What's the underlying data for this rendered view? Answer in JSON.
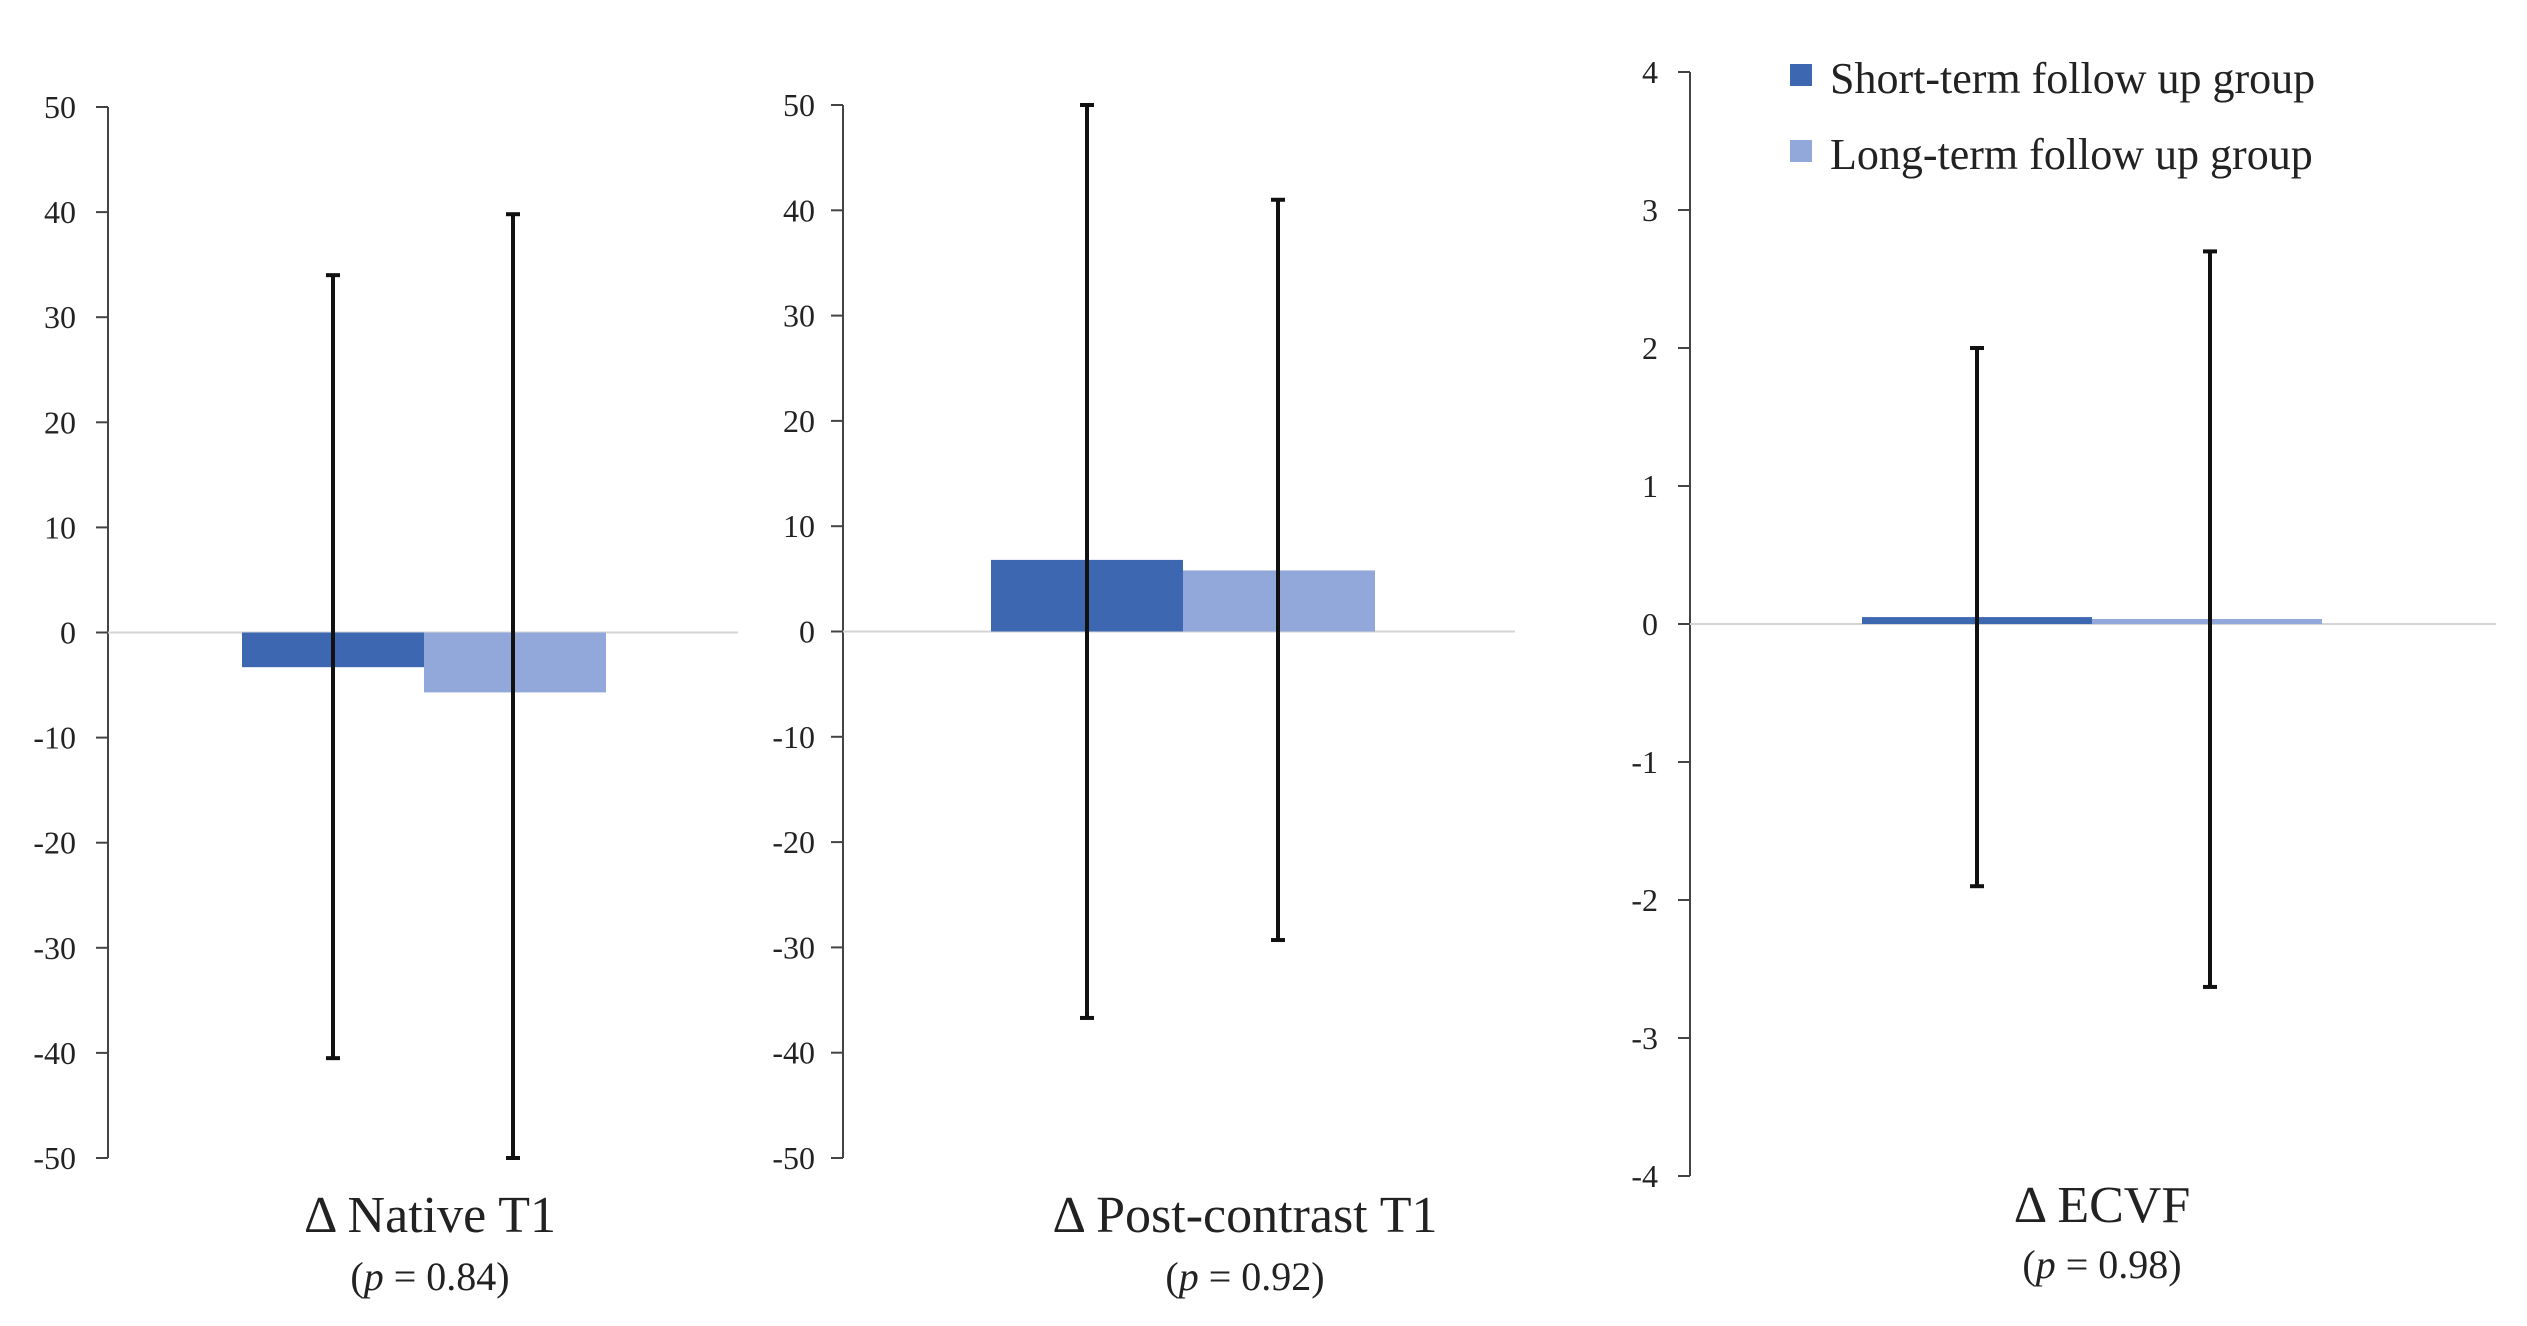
{
  "legend": {
    "placement": "top-right",
    "items": [
      {
        "label": "Short-term follow up group",
        "color": "#3D67B1"
      },
      {
        "label": "Long-term follow up group",
        "color": "#93A8DA"
      }
    ]
  },
  "chart_data": [
    {
      "type": "bar",
      "title": "Δ Native T1",
      "subtitle_prefix": "(",
      "subtitle_italic": "p",
      "subtitle_rest": " = 0.84)",
      "ylim": [
        -50,
        50
      ],
      "yticks": [
        50,
        40,
        30,
        20,
        10,
        0,
        -10,
        -20,
        -30,
        -40,
        -50
      ],
      "grid": false,
      "series": [
        {
          "name": "Short-term follow up group",
          "color": "#3D67B1",
          "value": -3.3,
          "err_high": 34,
          "err_low": -40.5
        },
        {
          "name": "Long-term follow up group",
          "color": "#93A8DA",
          "value": -5.7,
          "err_high": 39.8,
          "err_low": -50
        }
      ]
    },
    {
      "type": "bar",
      "title": "Δ Post-contrast T1",
      "subtitle_prefix": "(",
      "subtitle_italic": "p",
      "subtitle_rest": " = 0.92)",
      "ylim": [
        -50,
        50
      ],
      "yticks": [
        50,
        40,
        30,
        20,
        10,
        0,
        -10,
        -20,
        -30,
        -40,
        -50
      ],
      "grid": false,
      "series": [
        {
          "name": "Short-term follow up group",
          "color": "#3D67B1",
          "value": 6.8,
          "err_high": 50,
          "err_low": -36.7
        },
        {
          "name": "Long-term follow up group",
          "color": "#93A8DA",
          "value": 5.8,
          "err_high": 41,
          "err_low": -29.3
        }
      ]
    },
    {
      "type": "bar",
      "title": "Δ ECVF",
      "subtitle_prefix": "(",
      "subtitle_italic": "p",
      "subtitle_rest": " = 0.98)",
      "ylim": [
        -4,
        4
      ],
      "yticks": [
        4,
        3,
        2,
        1,
        0,
        -1,
        -2,
        -3,
        -4
      ],
      "grid": false,
      "series": [
        {
          "name": "Short-term follow up group",
          "color": "#3D67B1",
          "value": 0.05,
          "err_high": 2.0,
          "err_low": -1.9
        },
        {
          "name": "Long-term follow up group",
          "color": "#93A8DA",
          "value": 0.02,
          "err_high": 2.7,
          "err_low": -2.63
        }
      ]
    }
  ]
}
